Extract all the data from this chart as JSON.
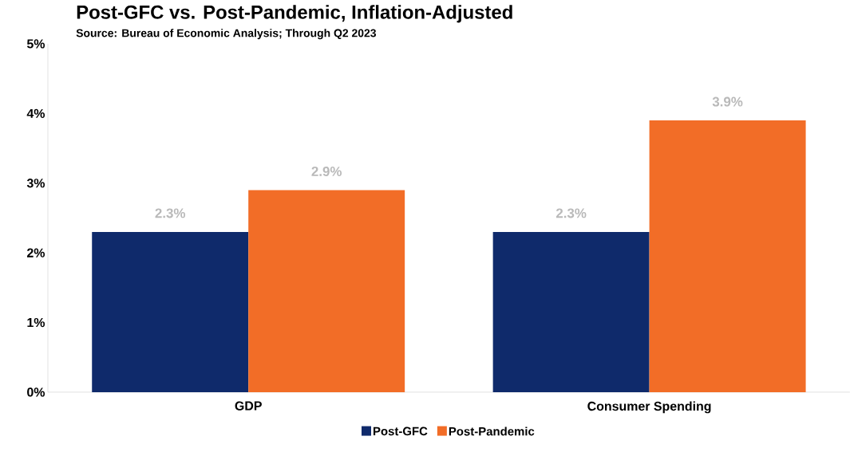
{
  "chart_data": {
    "type": "bar",
    "title": "Post-GFC vs. Post-Pandemic, Inflation-Adjusted",
    "subtitle": "Source: Bureau of Economic Analysis; Through Q2 2023",
    "categories": [
      "GDP",
      "Consumer Spending"
    ],
    "series": [
      {
        "name": "Post-GFC",
        "color": "#0f2a6b",
        "values": [
          2.3,
          2.3
        ],
        "value_labels": [
          "2.3%",
          "2.3%"
        ]
      },
      {
        "name": "Post-Pandemic",
        "color": "#f26d27",
        "values": [
          2.9,
          3.9
        ],
        "value_labels": [
          "2.9%",
          "3.9%"
        ]
      }
    ],
    "ylim": [
      0,
      5
    ],
    "yticks": [
      {
        "value": 0,
        "label": "0%"
      },
      {
        "value": 1,
        "label": "1%"
      },
      {
        "value": 2,
        "label": "2%"
      },
      {
        "value": 3,
        "label": "3%"
      },
      {
        "value": 4,
        "label": "4%"
      },
      {
        "value": 5,
        "label": "5%"
      }
    ],
    "grid": false,
    "legend": "bottom"
  }
}
